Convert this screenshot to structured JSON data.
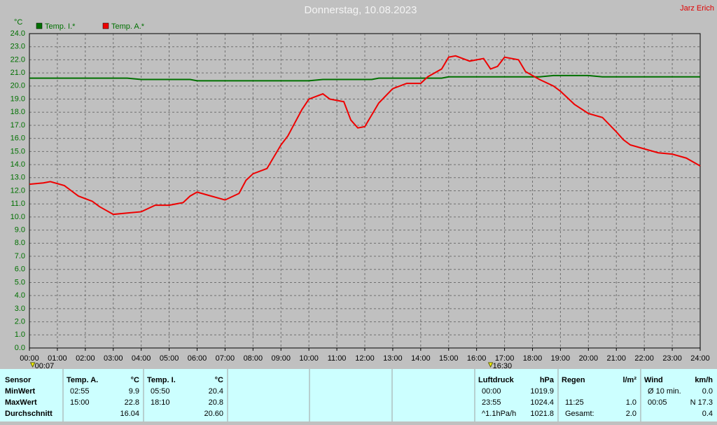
{
  "chart_data": {
    "type": "line",
    "title": "Donnerstag, 10.08.2023",
    "author": "Jarz Erich",
    "y_label": "°C",
    "x": [
      0,
      0.5,
      0.75,
      1.25,
      1.5,
      1.75,
      2.25,
      2.5,
      2.75,
      3.0,
      3.5,
      4.0,
      4.5,
      5.0,
      5.5,
      5.75,
      6.0,
      6.5,
      7.0,
      7.5,
      7.75,
      8.0,
      8.5,
      9.0,
      9.25,
      9.5,
      9.75,
      10.0,
      10.5,
      10.75,
      11.25,
      11.5,
      11.75,
      12.0,
      12.25,
      12.5,
      13.0,
      13.5,
      14.0,
      14.25,
      14.75,
      15.0,
      15.25,
      15.75,
      16.25,
      16.5,
      16.75,
      17.0,
      17.5,
      17.75,
      18.25,
      18.75,
      19.0,
      19.5,
      20.0,
      20.5,
      21.0,
      21.25,
      21.5,
      22.0,
      22.5,
      23.0,
      23.5,
      24.0
    ],
    "series": [
      {
        "name": "Temp. I.*",
        "color": "#007000",
        "values": [
          20.6,
          20.6,
          20.6,
          20.6,
          20.6,
          20.6,
          20.6,
          20.6,
          20.6,
          20.6,
          20.6,
          20.5,
          20.5,
          20.5,
          20.5,
          20.5,
          20.4,
          20.4,
          20.4,
          20.4,
          20.4,
          20.4,
          20.4,
          20.4,
          20.4,
          20.4,
          20.4,
          20.4,
          20.5,
          20.5,
          20.5,
          20.5,
          20.5,
          20.5,
          20.5,
          20.6,
          20.6,
          20.6,
          20.6,
          20.6,
          20.6,
          20.7,
          20.7,
          20.7,
          20.7,
          20.7,
          20.7,
          20.7,
          20.7,
          20.7,
          20.7,
          20.8,
          20.8,
          20.8,
          20.8,
          20.7,
          20.7,
          20.7,
          20.7,
          20.7,
          20.7,
          20.7,
          20.7,
          20.7
        ]
      },
      {
        "name": "Temp. A.*",
        "color": "#ee0000",
        "values": [
          12.5,
          12.6,
          12.7,
          12.4,
          12.0,
          11.6,
          11.2,
          10.8,
          10.5,
          10.2,
          10.3,
          10.4,
          10.9,
          10.9,
          11.1,
          11.6,
          11.9,
          11.6,
          11.3,
          11.8,
          12.8,
          13.3,
          13.7,
          15.5,
          16.2,
          17.2,
          18.2,
          19.0,
          19.4,
          19.0,
          18.8,
          17.4,
          16.8,
          16.9,
          17.8,
          18.7,
          19.8,
          20.2,
          20.2,
          20.7,
          21.3,
          22.2,
          22.3,
          21.9,
          22.1,
          21.3,
          21.5,
          22.2,
          22.0,
          21.1,
          20.5,
          20.0,
          19.6,
          18.6,
          17.9,
          17.6,
          16.5,
          15.9,
          15.5,
          15.2,
          14.9,
          14.8,
          14.5,
          13.9
        ]
      }
    ],
    "xlim": [
      0,
      24
    ],
    "xticks": [
      {
        "value": 0,
        "label": "00:00"
      },
      {
        "value": 1,
        "label": "01:00"
      },
      {
        "value": 2,
        "label": "02:00"
      },
      {
        "value": 3,
        "label": "03:00"
      },
      {
        "value": 4,
        "label": "04:00"
      },
      {
        "value": 5,
        "label": "05:00"
      },
      {
        "value": 6,
        "label": "06:00"
      },
      {
        "value": 7,
        "label": "07:00"
      },
      {
        "value": 8,
        "label": "08:00"
      },
      {
        "value": 9,
        "label": "09:00"
      },
      {
        "value": 10,
        "label": "10:00"
      },
      {
        "value": 11,
        "label": "11:00"
      },
      {
        "value": 12,
        "label": "12:00"
      },
      {
        "value": 13,
        "label": "13:00"
      },
      {
        "value": 14,
        "label": "14:00"
      },
      {
        "value": 15,
        "label": "15:00"
      },
      {
        "value": 16,
        "label": "16:00"
      },
      {
        "value": 17,
        "label": "17:00"
      },
      {
        "value": 18,
        "label": "18:00"
      },
      {
        "value": 19,
        "label": "19:00"
      },
      {
        "value": 20,
        "label": "20:00"
      },
      {
        "value": 21,
        "label": "21:00"
      },
      {
        "value": 22,
        "label": "22:00"
      },
      {
        "value": 23,
        "label": "23:00"
      },
      {
        "value": 24,
        "label": "24:00"
      }
    ],
    "ylim": [
      0,
      24
    ],
    "yticks": [
      {
        "value": 0,
        "label": "0.0"
      },
      {
        "value": 1,
        "label": "1.0"
      },
      {
        "value": 2,
        "label": "2.0"
      },
      {
        "value": 3,
        "label": "3.0"
      },
      {
        "value": 4,
        "label": "4.0"
      },
      {
        "value": 5,
        "label": "5.0"
      },
      {
        "value": 6,
        "label": "6.0"
      },
      {
        "value": 7,
        "label": "7.0"
      },
      {
        "value": 8,
        "label": "8.0"
      },
      {
        "value": 9,
        "label": "9.0"
      },
      {
        "value": 10,
        "label": "10.0"
      },
      {
        "value": 11,
        "label": "11.0"
      },
      {
        "value": 12,
        "label": "12.0"
      },
      {
        "value": 13,
        "label": "13.0"
      },
      {
        "value": 14,
        "label": "14.0"
      },
      {
        "value": 15,
        "label": "15.0"
      },
      {
        "value": 16,
        "label": "16.0"
      },
      {
        "value": 17,
        "label": "17.0"
      },
      {
        "value": 18,
        "label": "18.0"
      },
      {
        "value": 19,
        "label": "19.0"
      },
      {
        "value": 20,
        "label": "20.0"
      },
      {
        "value": 21,
        "label": "21.0"
      },
      {
        "value": 22,
        "label": "22.0"
      },
      {
        "value": 23,
        "label": "23.0"
      },
      {
        "value": 24,
        "label": "24.0"
      }
    ],
    "grid": true,
    "annotations": [
      {
        "label": "00:07",
        "x": 0.1167
      },
      {
        "label": "16:30",
        "x": 16.5
      }
    ]
  },
  "table": {
    "labels": [
      "Sensor",
      "MinWert",
      "MaxWert",
      "Durchschnitt"
    ],
    "panels": [
      {
        "name": "Temp. A.",
        "unit": "°C",
        "rows": [
          [
            "02:55",
            "9.9"
          ],
          [
            "15:00",
            "22.8"
          ],
          [
            null,
            "16.04"
          ]
        ]
      },
      {
        "name": "Temp. I.",
        "unit": "°C",
        "rows": [
          [
            "05:50",
            "20.4"
          ],
          [
            "18:10",
            "20.8"
          ],
          [
            null,
            "20.60"
          ]
        ]
      },
      {
        "name": "Luftdruck",
        "unit": "hPa",
        "rows": [
          [
            "00:00",
            "1019.9"
          ],
          [
            "23:55",
            "1024.4"
          ],
          [
            "^1.1hPa/h",
            "1021.8"
          ]
        ]
      },
      {
        "name": "Regen",
        "unit": "l/m²",
        "rows": [
          [
            null,
            null
          ],
          [
            "11:25",
            "1.0"
          ],
          [
            "Gesamt:",
            "2.0"
          ]
        ]
      },
      {
        "name": "Wind",
        "unit": "km/h",
        "rows": [
          [
            "Ø 10 min.",
            "0.0"
          ],
          [
            "00:05",
            "N 17.3"
          ],
          [
            null,
            "0.4"
          ]
        ]
      }
    ]
  }
}
